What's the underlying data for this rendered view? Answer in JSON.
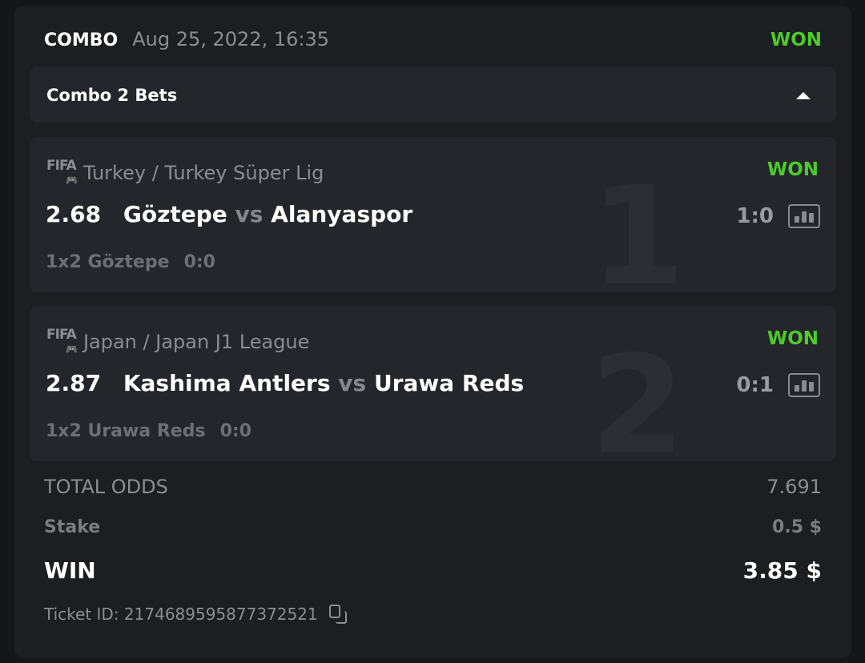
{
  "header": {
    "type": "COMBO",
    "date": "Aug 25, 2022, 16:35",
    "status": "WON"
  },
  "combo": {
    "label": "Combo 2 Bets",
    "expanded": true
  },
  "colors": {
    "won": "#4ccb2a",
    "card": "#1d1e22",
    "bet_card": "#25262b"
  },
  "bets": [
    {
      "index": "1",
      "sport_icon": "fifa-gamepad-icon",
      "sport_label": "FIFA",
      "league": "Turkey / Turkey Süper Lig",
      "status": "WON",
      "odds": "2.68",
      "home": "Göztepe",
      "vs": "vs",
      "away": "Alanyaspor",
      "score": "1:0",
      "market": "1x2 Göztepe",
      "pick_score": "0:0"
    },
    {
      "index": "2",
      "sport_icon": "fifa-gamepad-icon",
      "sport_label": "FIFA",
      "league": "Japan / Japan J1 League",
      "status": "WON",
      "odds": "2.87",
      "home": "Kashima Antlers",
      "vs": "vs",
      "away": "Urawa Reds",
      "score": "0:1",
      "market": "1x2 Urawa Reds",
      "pick_score": "0:0"
    }
  ],
  "summary": {
    "total_odds_label": "TOTAL ODDS",
    "total_odds": "7.691",
    "stake_label": "Stake",
    "stake": "0.5 $",
    "win_label": "WIN",
    "win": "3.85 $"
  },
  "ticket": {
    "label": "Ticket ID: 2174689595877372521"
  }
}
